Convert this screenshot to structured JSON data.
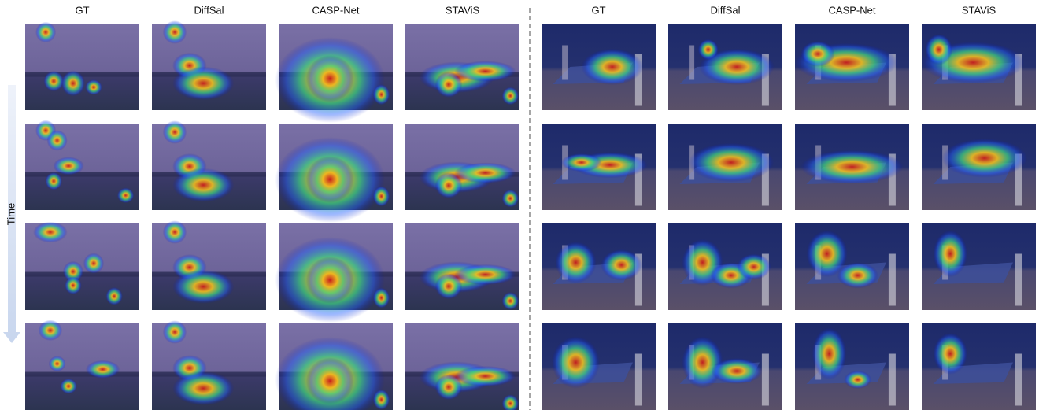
{
  "left_columns": [
    "GT",
    "DiffSal",
    "CASP-Net",
    "STAViS"
  ],
  "right_columns": [
    "GT",
    "DiffSal",
    "CASP-Net",
    "STAViS"
  ],
  "time_label": "Time"
}
